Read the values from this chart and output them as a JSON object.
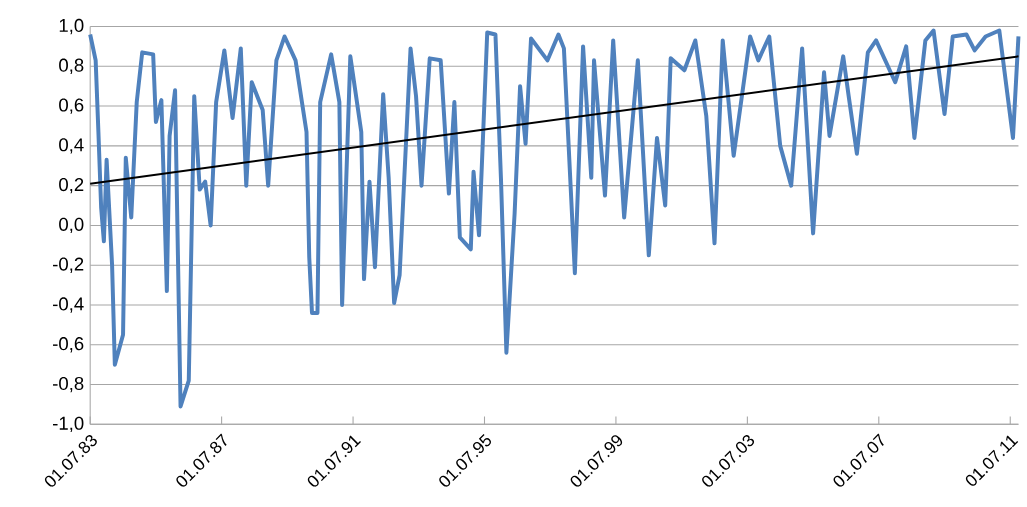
{
  "chart_data": {
    "type": "line",
    "xlim": [
      "1983-07",
      "2011-10"
    ],
    "ylim": [
      -1.0,
      1.0
    ],
    "xticks": [
      {
        "value": "1983-07-01",
        "label": "01.07.83"
      },
      {
        "value": "1987-07-01",
        "label": "01.07.87"
      },
      {
        "value": "1991-07-01",
        "label": "01.07.91"
      },
      {
        "value": "1995-07-01",
        "label": "01.07.95"
      },
      {
        "value": "1999-07-01",
        "label": "01.07.99"
      },
      {
        "value": "2003-07-01",
        "label": "01.07.03"
      },
      {
        "value": "2007-07-01",
        "label": "01.07.07"
      },
      {
        "value": "2011-07-01",
        "label": "01.07.11"
      }
    ],
    "yticks": [
      {
        "value": -1.0,
        "label": "-1,0"
      },
      {
        "value": -0.8,
        "label": "-0,8"
      },
      {
        "value": -0.6,
        "label": "-0,6"
      },
      {
        "value": -0.4,
        "label": "-0,4"
      },
      {
        "value": -0.2,
        "label": "-0,2"
      },
      {
        "value": 0.0,
        "label": "0,0"
      },
      {
        "value": 0.2,
        "label": "0,2"
      },
      {
        "value": 0.4,
        "label": "0,4"
      },
      {
        "value": 0.6,
        "label": "0,6"
      },
      {
        "value": 0.8,
        "label": "0,8"
      },
      {
        "value": 1.0,
        "label": "1,0"
      }
    ],
    "grid": "y",
    "series": [
      {
        "color": "#4f81bd",
        "x": [
          "1983-07",
          "1983-09",
          "1983-10",
          "1983-11",
          "1983-12",
          "1984-01",
          "1984-03",
          "1984-04",
          "1984-07",
          "1984-08",
          "1984-10",
          "1984-12",
          "1985-02",
          "1985-06",
          "1985-07",
          "1985-09",
          "1985-11",
          "1985-12",
          "1986-02",
          "1986-04",
          "1986-07",
          "1986-09",
          "1986-11",
          "1987-01",
          "1987-03",
          "1987-05",
          "1987-08",
          "1987-11",
          "1988-02",
          "1988-04",
          "1988-06",
          "1988-10",
          "1988-12",
          "1989-03",
          "1989-06",
          "1989-10",
          "1990-02",
          "1990-03",
          "1990-04",
          "1990-06",
          "1990-07",
          "1990-11",
          "1991-02",
          "1991-03",
          "1991-06",
          "1991-10",
          "1991-11",
          "1992-01",
          "1992-03",
          "1992-06",
          "1992-08",
          "1992-10",
          "1992-12",
          "1993-04",
          "1993-06",
          "1993-08",
          "1993-11",
          "1994-03",
          "1994-06",
          "1994-08",
          "1994-10",
          "1995-02",
          "1995-03",
          "1995-05",
          "1995-08",
          "1995-11",
          "1996-01",
          "1996-03",
          "1996-06",
          "1996-08",
          "1996-10",
          "1996-12",
          "1997-06",
          "1997-10",
          "1997-12",
          "1998-04",
          "1998-07",
          "1998-10",
          "1998-11",
          "1999-03",
          "1999-06",
          "1999-10",
          "2000-03",
          "2000-07",
          "2000-10",
          "2001-01",
          "2001-03",
          "2001-08",
          "2001-12",
          "2002-04",
          "2002-07",
          "2002-10",
          "2003-02",
          "2003-08",
          "2003-11",
          "2004-03",
          "2004-07",
          "2004-11",
          "2005-03",
          "2005-07",
          "2005-11",
          "2006-01",
          "2006-06",
          "2006-08",
          "2006-11",
          "2007-03",
          "2007-06",
          "2008-01",
          "2008-05",
          "2008-08",
          "2008-12",
          "2009-03",
          "2009-07",
          "2009-10",
          "2010-03",
          "2010-06",
          "2010-10",
          "2011-03",
          "2011-08",
          "2011-10"
        ],
        "values": [
          0.96,
          0.83,
          0.47,
          0.09,
          -0.08,
          0.33,
          -0.2,
          -0.7,
          -0.55,
          0.34,
          0.04,
          0.62,
          0.87,
          0.86,
          0.52,
          0.63,
          -0.33,
          0.45,
          0.68,
          -0.91,
          -0.78,
          0.65,
          0.18,
          0.22,
          0.0,
          0.62,
          0.88,
          0.54,
          0.89,
          0.2,
          0.72,
          0.58,
          0.2,
          0.83,
          0.95,
          0.83,
          0.47,
          -0.16,
          -0.44,
          -0.44,
          0.62,
          0.86,
          0.62,
          -0.4,
          0.85,
          0.47,
          -0.27,
          0.22,
          -0.21,
          0.66,
          0.24,
          -0.39,
          -0.25,
          0.89,
          0.65,
          0.2,
          0.84,
          0.83,
          0.16,
          0.62,
          -0.06,
          -0.12,
          0.27,
          -0.05,
          0.97,
          0.96,
          0.24,
          -0.64,
          0.06,
          0.7,
          0.41,
          0.94,
          0.83,
          0.96,
          0.89,
          -0.24,
          0.9,
          0.24,
          0.83,
          0.15,
          0.93,
          0.04,
          0.83,
          -0.15,
          0.44,
          0.1,
          0.84,
          0.78,
          0.93,
          0.55,
          -0.09,
          0.93,
          0.35,
          0.95,
          0.83,
          0.95,
          0.4,
          0.2,
          0.89,
          -0.04,
          0.77,
          0.45,
          0.85,
          0.65,
          0.36,
          0.87,
          0.93,
          0.72,
          0.9,
          0.44,
          0.93,
          0.98,
          0.56,
          0.95,
          0.96,
          0.88,
          0.95,
          0.98,
          0.44,
          0.95
        ]
      },
      {
        "color": "#000000",
        "x": [
          "1983-07",
          "2011-10"
        ],
        "values": [
          0.21,
          0.85
        ]
      }
    ]
  }
}
